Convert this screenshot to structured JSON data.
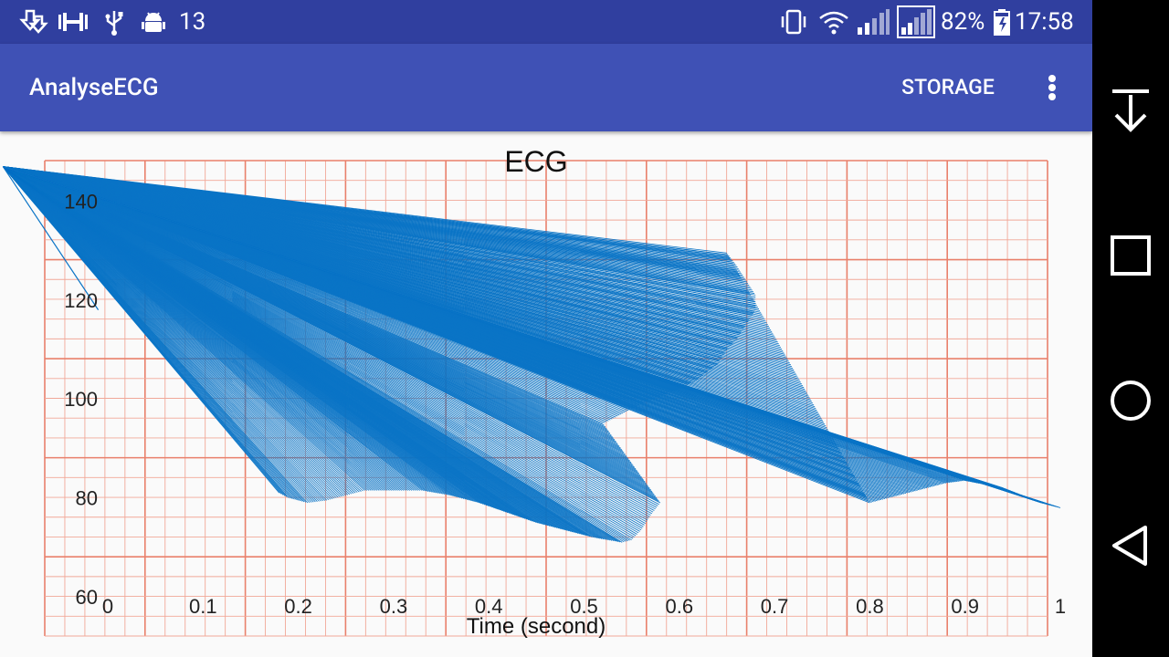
{
  "status_bar": {
    "notification_count": "13",
    "notification_icons": [
      "download-done-icon",
      "dumbbell-icon",
      "usb-icon",
      "android-debug-icon"
    ],
    "system_icons": [
      "vibrate-icon",
      "wifi-icon",
      "signal-1-icon",
      "signal-2-icon"
    ],
    "battery_percent": "82%",
    "time": "17:58"
  },
  "app_bar": {
    "title": "AnalyseECG",
    "storage_label": "STORAGE",
    "overflow_icon": "more-vert-icon"
  },
  "nav_bar": {
    "icons": [
      "hide-keyboard-icon",
      "recents-icon",
      "home-icon",
      "back-icon"
    ]
  },
  "colors": {
    "status_bar": "#303f9f",
    "app_bar": "#3f51b5",
    "grid_major": "#e9806b",
    "grid_minor": "#f1a898",
    "series": "#0a74c6"
  },
  "chart_data": {
    "type": "line",
    "title": "ECG",
    "xlabel": "Time (second)",
    "ylabel": "",
    "x_ticks": [
      "0",
      "0.1",
      "0.2",
      "0.3",
      "0.4",
      "0.5",
      "0.6",
      "0.7",
      "0.8",
      "0.9",
      "1"
    ],
    "y_ticks": [
      "60",
      "80",
      "100",
      "120",
      "140"
    ],
    "xlim": [
      0,
      1
    ],
    "ylim": [
      55,
      145
    ],
    "grid": true,
    "legend": "none",
    "series": [
      {
        "description": "Dense fan of line segments; each segment starts at origin_approx and ends at one point below",
        "origin_approx": {
          "x": -0.11,
          "y": 147
        },
        "endpoints": [
          {
            "x": -0.01,
            "y": 118
          },
          {
            "x": 0.18,
            "y": 81
          },
          {
            "x": 0.19,
            "y": 80
          },
          {
            "x": 0.2,
            "y": 79.5
          },
          {
            "x": 0.21,
            "y": 79
          },
          {
            "x": 0.23,
            "y": 79.5
          },
          {
            "x": 0.25,
            "y": 80.5
          },
          {
            "x": 0.27,
            "y": 81.5
          },
          {
            "x": 0.3,
            "y": 81.5
          },
          {
            "x": 0.33,
            "y": 81.5
          },
          {
            "x": 0.36,
            "y": 80.5
          },
          {
            "x": 0.39,
            "y": 79
          },
          {
            "x": 0.42,
            "y": 77
          },
          {
            "x": 0.45,
            "y": 75
          },
          {
            "x": 0.48,
            "y": 73.5
          },
          {
            "x": 0.51,
            "y": 72
          },
          {
            "x": 0.54,
            "y": 71
          },
          {
            "x": 0.55,
            "y": 71.5
          },
          {
            "x": 0.56,
            "y": 73.5
          },
          {
            "x": 0.57,
            "y": 76.5
          },
          {
            "x": 0.58,
            "y": 79
          },
          {
            "x": 0.52,
            "y": 95
          },
          {
            "x": 0.56,
            "y": 99
          },
          {
            "x": 0.6,
            "y": 102
          },
          {
            "x": 0.62,
            "y": 104
          },
          {
            "x": 0.64,
            "y": 107
          },
          {
            "x": 0.65,
            "y": 110
          },
          {
            "x": 0.66,
            "y": 112
          },
          {
            "x": 0.67,
            "y": 115
          },
          {
            "x": 0.68,
            "y": 118
          },
          {
            "x": 0.68,
            "y": 121
          },
          {
            "x": 0.67,
            "y": 124
          },
          {
            "x": 0.66,
            "y": 127
          },
          {
            "x": 0.65,
            "y": 129.5
          },
          {
            "x": 0.8,
            "y": 79
          },
          {
            "x": 0.82,
            "y": 80
          },
          {
            "x": 0.84,
            "y": 81
          },
          {
            "x": 0.86,
            "y": 82
          },
          {
            "x": 0.88,
            "y": 83
          },
          {
            "x": 0.9,
            "y": 83.5
          },
          {
            "x": 0.94,
            "y": 82
          },
          {
            "x": 0.98,
            "y": 79
          },
          {
            "x": 1.0,
            "y": 78
          }
        ]
      }
    ]
  }
}
